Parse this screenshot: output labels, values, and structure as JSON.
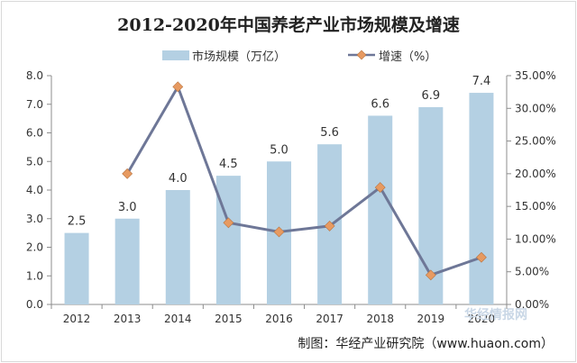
{
  "chart_data": {
    "type": "bar",
    "title": "2012-2020年中国养老产业市场规模及增速",
    "categories": [
      "2012",
      "2013",
      "2014",
      "2015",
      "2016",
      "2017",
      "2018",
      "2019",
      "2020"
    ],
    "series": [
      {
        "name": "市场规模（万亿）",
        "type": "bar",
        "axis": "left",
        "color": "#b4d0e3",
        "values": [
          2.5,
          3.0,
          4.0,
          4.5,
          5.0,
          5.6,
          6.6,
          6.9,
          7.4
        ],
        "labels": [
          "2.5",
          "3.0",
          "4.0",
          "4.5",
          "5.0",
          "5.6",
          "6.6",
          "6.9",
          "7.4"
        ]
      },
      {
        "name": "增速（%）",
        "type": "line",
        "axis": "right",
        "color": "#6e7797",
        "marker_color": "#e79a61",
        "values": [
          null,
          20.0,
          33.3,
          12.5,
          11.1,
          12.0,
          17.9,
          4.5,
          7.2
        ]
      }
    ],
    "y_left": {
      "ylim": [
        0,
        8
      ],
      "ticks": [
        "0.0",
        "1.0",
        "2.0",
        "3.0",
        "4.0",
        "5.0",
        "6.0",
        "7.0",
        "8.0"
      ]
    },
    "y_right": {
      "ylim": [
        0,
        35
      ],
      "ticks": [
        "0.00%",
        "5.00%",
        "10.00%",
        "15.00%",
        "20.00%",
        "25.00%",
        "30.00%",
        "35.00%"
      ]
    },
    "legend": "top-center",
    "grid": false
  },
  "source": "制图：华经产业研究院（www.huaon.com）",
  "watermark": "华经情报网"
}
